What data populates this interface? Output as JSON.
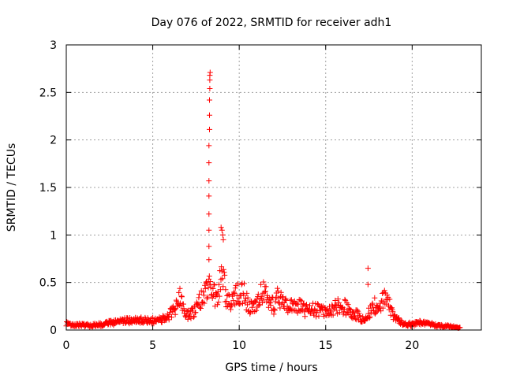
{
  "chart_data": {
    "type": "scatter",
    "title": "Day 076 of 2022, SRMTID for receiver adh1",
    "xlabel": "GPS time / hours",
    "ylabel": "SRMTID / TECUs",
    "xlim": [
      0,
      24
    ],
    "ylim": [
      0,
      3
    ],
    "x_ticks": [
      0,
      5,
      10,
      15,
      20
    ],
    "y_ticks": [
      0,
      0.5,
      1,
      1.5,
      2,
      2.5,
      3
    ],
    "x_tick_labels": [
      "0",
      "5",
      "10",
      "15",
      "20"
    ],
    "y_tick_labels": [
      "0",
      "0.5",
      "1",
      "1.5",
      "2",
      "2.5",
      "3"
    ],
    "grid": true,
    "marker": "+",
    "series": [
      {
        "name": "SRMTID",
        "color": "#ff0000",
        "profile": [
          [
            0.0,
            0.08
          ],
          [
            0.5,
            0.07
          ],
          [
            1.0,
            0.06
          ],
          [
            1.5,
            0.06
          ],
          [
            2.0,
            0.07
          ],
          [
            2.5,
            0.09
          ],
          [
            3.0,
            0.1
          ],
          [
            3.5,
            0.12
          ],
          [
            4.0,
            0.12
          ],
          [
            4.5,
            0.13
          ],
          [
            5.0,
            0.12
          ],
          [
            5.5,
            0.14
          ],
          [
            6.0,
            0.2
          ],
          [
            6.3,
            0.28
          ],
          [
            6.6,
            0.42
          ],
          [
            6.8,
            0.25
          ],
          [
            7.0,
            0.18
          ],
          [
            7.3,
            0.22
          ],
          [
            7.6,
            0.3
          ],
          [
            7.9,
            0.45
          ],
          [
            8.1,
            0.58
          ],
          [
            8.3,
            0.55
          ],
          [
            8.6,
            0.42
          ],
          [
            8.8,
            0.38
          ],
          [
            9.0,
            0.9
          ],
          [
            9.1,
            0.6
          ],
          [
            9.3,
            0.35
          ],
          [
            9.6,
            0.4
          ],
          [
            9.9,
            0.45
          ],
          [
            10.2,
            0.5
          ],
          [
            10.5,
            0.32
          ],
          [
            10.8,
            0.28
          ],
          [
            11.1,
            0.38
          ],
          [
            11.4,
            0.55
          ],
          [
            11.7,
            0.4
          ],
          [
            12.0,
            0.3
          ],
          [
            12.3,
            0.45
          ],
          [
            12.6,
            0.3
          ],
          [
            12.9,
            0.35
          ],
          [
            13.2,
            0.28
          ],
          [
            13.5,
            0.35
          ],
          [
            13.8,
            0.25
          ],
          [
            14.2,
            0.26
          ],
          [
            14.6,
            0.25
          ],
          [
            15.0,
            0.24
          ],
          [
            15.4,
            0.26
          ],
          [
            15.8,
            0.33
          ],
          [
            16.2,
            0.28
          ],
          [
            16.6,
            0.22
          ],
          [
            16.9,
            0.18
          ],
          [
            17.2,
            0.12
          ],
          [
            17.5,
            0.22
          ],
          [
            17.8,
            0.32
          ],
          [
            18.1,
            0.25
          ],
          [
            18.4,
            0.45
          ],
          [
            18.7,
            0.3
          ],
          [
            19.0,
            0.15
          ],
          [
            19.5,
            0.08
          ],
          [
            20.0,
            0.07
          ],
          [
            20.5,
            0.1
          ],
          [
            21.0,
            0.08
          ],
          [
            21.5,
            0.05
          ],
          [
            22.0,
            0.05
          ],
          [
            22.4,
            0.04
          ],
          [
            22.8,
            0.03
          ]
        ],
        "spike_points": [
          [
            8.25,
            0.74
          ],
          [
            8.25,
            0.88
          ],
          [
            8.25,
            1.05
          ],
          [
            8.25,
            1.22
          ],
          [
            8.25,
            1.41
          ],
          [
            8.25,
            1.57
          ],
          [
            8.25,
            1.76
          ],
          [
            8.25,
            1.94
          ],
          [
            8.28,
            2.11
          ],
          [
            8.28,
            2.26
          ],
          [
            8.28,
            2.42
          ],
          [
            8.3,
            2.54
          ],
          [
            8.3,
            2.63
          ],
          [
            8.3,
            2.68
          ],
          [
            8.32,
            2.71
          ],
          [
            8.95,
            1.08
          ],
          [
            9.0,
            1.05
          ],
          [
            9.05,
            1.0
          ],
          [
            9.08,
            0.95
          ],
          [
            17.45,
            0.65
          ],
          [
            17.45,
            0.48
          ]
        ]
      }
    ]
  }
}
